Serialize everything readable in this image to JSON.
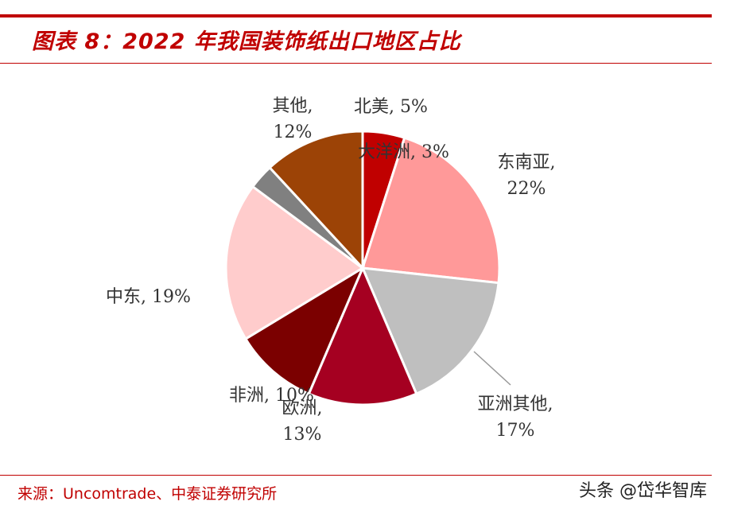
{
  "title": "图表 8：2022 年我国装饰纸出口地区占比",
  "source": "来源：Uncomtrade、中泰证券研究所",
  "watermark": "头条 @岱华智库",
  "chart_data": {
    "type": "pie",
    "slices": [
      {
        "name": "北美",
        "value": 5,
        "label": "北美, 5%",
        "color": "#c00000"
      },
      {
        "name": "东南亚",
        "value": 22,
        "label": "东南亚, 22%",
        "color": "#ff9999"
      },
      {
        "name": "亚洲其他",
        "value": 17,
        "label": "亚洲其他, 17%",
        "color": "#bfbfbf"
      },
      {
        "name": "欧洲",
        "value": 13,
        "label": "欧洲, 13%",
        "color": "#a50021"
      },
      {
        "name": "非洲",
        "value": 10,
        "label": "非洲, 10%",
        "color": "#7b0000"
      },
      {
        "name": "中东",
        "value": 19,
        "label": "中东, 19%",
        "color": "#ffcccc"
      },
      {
        "name": "大洋洲",
        "value": 3,
        "label": "大洋洲, 3%",
        "color": "#808080"
      },
      {
        "name": "其他",
        "value": 12,
        "label": "其他, 12%",
        "color": "#9c4306"
      }
    ]
  }
}
